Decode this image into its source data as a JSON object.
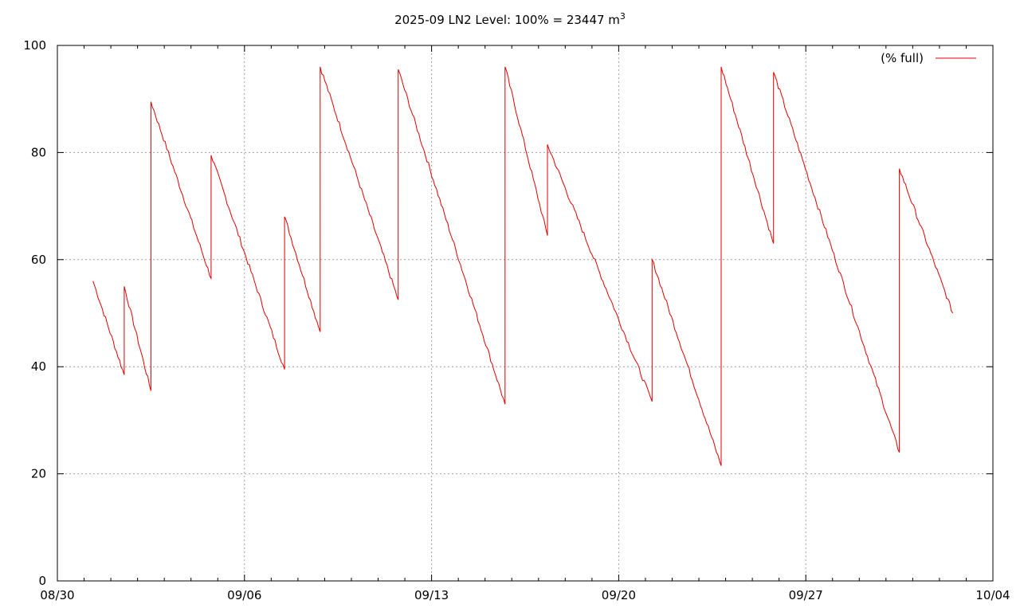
{
  "chart_data": {
    "type": "line",
    "title": "2025-09 LN2 Level: 100% = 23447 m",
    "title_superscript": "3",
    "xlabel": "",
    "ylabel": "",
    "x_axis": {
      "type": "date",
      "min": "2025-08-30",
      "max": "2025-10-04",
      "ticks": [
        "2025-08-30",
        "2025-09-06",
        "2025-09-13",
        "2025-09-20",
        "2025-09-27",
        "2025-10-04"
      ],
      "tick_labels": [
        "08/30",
        "09/06",
        "09/13",
        "09/20",
        "09/27",
        "10/04"
      ]
    },
    "ylim": [
      0,
      100
    ],
    "y_ticks": [
      0,
      20,
      40,
      60,
      80,
      100
    ],
    "y_tick_labels": [
      "0",
      "20",
      "40",
      "60",
      "80",
      "100"
    ],
    "grid": true,
    "legend_position": "top-right",
    "series": [
      {
        "name": "(% full)",
        "color": "#dd0000",
        "x": [
          "2025-08-31 08:00",
          "2025-09-01 12:00",
          "2025-09-01 12:00",
          "2025-09-02 12:00",
          "2025-09-02 12:00",
          "2025-09-04 18:00",
          "2025-09-04 18:00",
          "2025-09-07 12:00",
          "2025-09-07 12:00",
          "2025-09-08 20:00",
          "2025-09-08 20:00",
          "2025-09-11 18:00",
          "2025-09-11 18:00",
          "2025-09-15 18:00",
          "2025-09-15 18:00",
          "2025-09-17 08:00",
          "2025-09-17 08:00",
          "2025-09-21 06:00",
          "2025-09-21 06:00",
          "2025-09-23 20:00",
          "2025-09-23 20:00",
          "2025-09-25 19:00",
          "2025-09-25 19:00",
          "2025-09-30 12:00",
          "2025-09-30 12:00",
          "2025-10-02 12:00"
        ],
        "values": [
          56,
          38.5,
          55,
          35.5,
          89.5,
          56.5,
          79.5,
          39.5,
          68,
          46.5,
          96,
          52.5,
          95.5,
          33,
          96,
          64.5,
          81.5,
          33.5,
          60,
          21.5,
          96,
          63,
          95,
          24,
          77,
          50
        ]
      }
    ]
  }
}
